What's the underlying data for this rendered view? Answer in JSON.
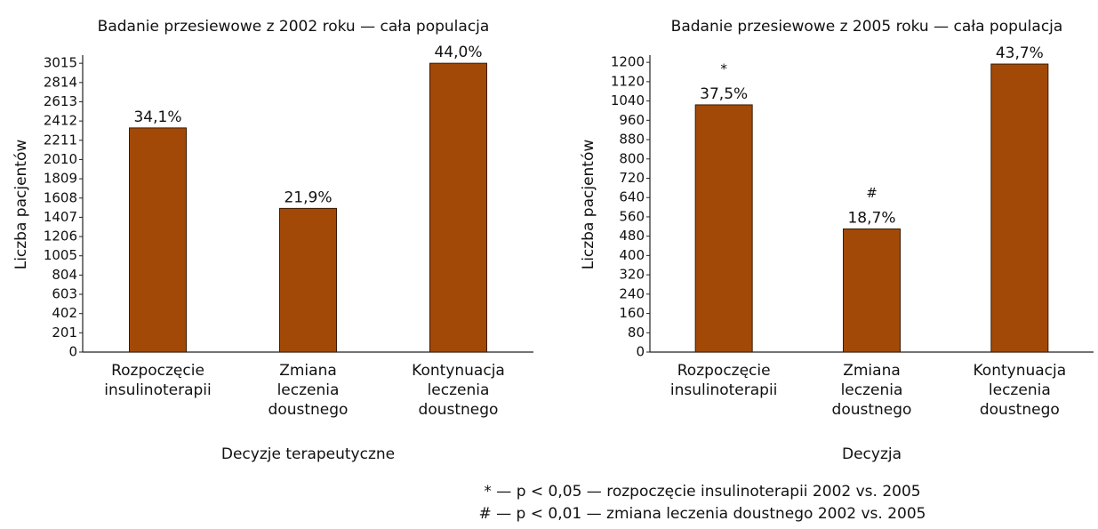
{
  "chart_data": [
    {
      "type": "bar",
      "title": "Badanie przesiewowe z 2002 roku — cała populacja",
      "y_label": "Liczba pacjentów",
      "x_label": "Decyzje terapeutyczne",
      "categories": [
        [
          "Rozpoczęcie",
          "insulinoterapii"
        ],
        [
          "Zmiana",
          "leczenia",
          "doustnego"
        ],
        [
          "Kontynuacja",
          "leczenia",
          "doustnego"
        ]
      ],
      "values": [
        2340,
        1500,
        3015
      ],
      "share_labels": [
        "34,1%",
        "21,9%",
        "44,0%"
      ],
      "markers": [
        null,
        null,
        null
      ],
      "color": "#a24908",
      "ylim": [
        0,
        3100
      ],
      "yticks": [
        0,
        201,
        402,
        603,
        804,
        1005,
        1206,
        1407,
        1608,
        1809,
        2010,
        2211,
        2412,
        2613,
        2814,
        3015
      ]
    },
    {
      "type": "bar",
      "title": "Badanie przesiewowe z 2005 roku — cała populacja",
      "y_label": "Liczba pacjentów",
      "x_label": "Decyzja",
      "categories": [
        [
          "Rozpoczęcie",
          "insulinoterapii"
        ],
        [
          "Zmiana",
          "leczenia",
          "doustnego"
        ],
        [
          "Kontynuacja",
          "leczenia",
          "doustnego"
        ]
      ],
      "values": [
        1024,
        510,
        1193
      ],
      "share_labels": [
        "37,5%",
        "18,7%",
        "43,7%"
      ],
      "markers": [
        "*",
        "#",
        null
      ],
      "color": "#a24908",
      "ylim": [
        0,
        1230
      ],
      "yticks": [
        0,
        80,
        160,
        240,
        320,
        400,
        480,
        560,
        640,
        720,
        800,
        880,
        960,
        1040,
        1120,
        1200
      ]
    }
  ],
  "notes": [
    "* — p < 0,05 — rozpoczęcie insulinoterapii 2002 vs. 2005",
    "# — p < 0,01 — zmiana leczenia doustnego 2002 vs. 2005"
  ]
}
